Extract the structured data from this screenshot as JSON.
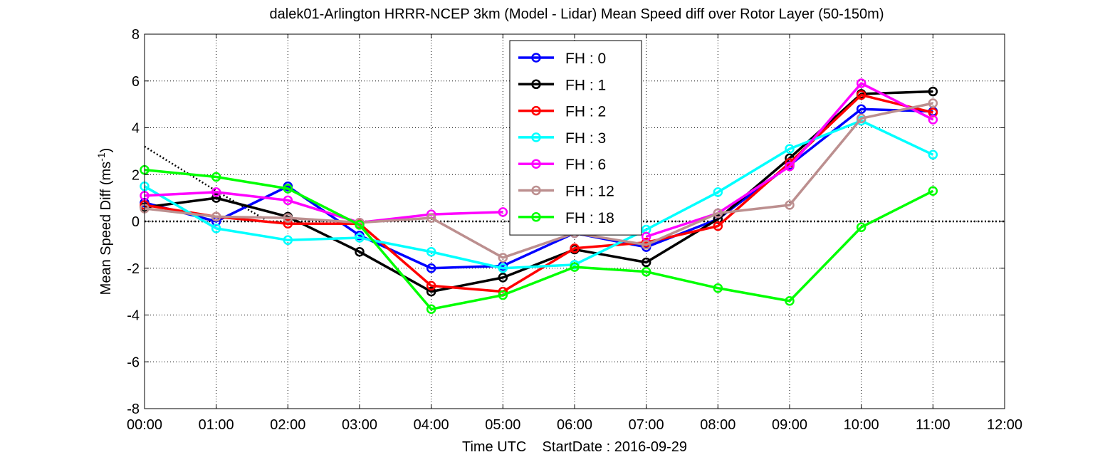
{
  "chart_data": {
    "type": "line",
    "title": "dalek01-Arlington HRRR-NCEP 3km (Model - Lidar) Mean Speed diff over Rotor Layer (50-150m)",
    "xlabel": "Time UTC    StartDate : 2016-09-29",
    "ylabel": "Mean Speed Diff (ms",
    "ylabel_sup": "-1",
    "ylabel_close": ")",
    "x_tick_labels": [
      "00:00",
      "01:00",
      "02:00",
      "03:00",
      "04:00",
      "05:00",
      "06:00",
      "07:00",
      "08:00",
      "09:00",
      "10:00",
      "11:00",
      "12:00"
    ],
    "xlim": [
      0,
      12
    ],
    "ylim": [
      -8,
      8
    ],
    "y_ticks": [
      -8,
      -6,
      -4,
      -2,
      0,
      2,
      4,
      6,
      8
    ],
    "grid": true,
    "legend_position": "top-center",
    "zero_line": {
      "y": 0,
      "style": "dotted",
      "color": "#000000"
    },
    "trend_line": {
      "x": [
        0,
        1,
        1.7
      ],
      "y": [
        3.2,
        1.3,
        0.05
      ],
      "style": "dotted",
      "color": "#000000"
    },
    "series": [
      {
        "name": "FH : 0",
        "color": "#0000ff",
        "x": [
          0,
          1,
          2,
          3,
          4,
          5,
          6,
          7,
          8,
          9,
          10,
          11
        ],
        "y": [
          0.8,
          0.0,
          1.5,
          -0.6,
          -2.0,
          -1.9,
          -0.5,
          -1.1,
          0.1,
          2.4,
          4.8,
          4.7
        ]
      },
      {
        "name": "FH : 1",
        "color": "#000000",
        "x": [
          0,
          1,
          2,
          3,
          4,
          5,
          6,
          7,
          8,
          9,
          10,
          11
        ],
        "y": [
          0.6,
          1.0,
          0.2,
          -1.3,
          -3.0,
          -2.4,
          -1.2,
          -1.75,
          0.1,
          2.7,
          5.45,
          5.55
        ]
      },
      {
        "name": "FH : 2",
        "color": "#ff0000",
        "x": [
          0,
          1,
          2,
          3,
          4,
          5,
          6,
          7,
          8,
          9,
          10,
          11
        ],
        "y": [
          0.7,
          0.2,
          -0.1,
          -0.1,
          -2.75,
          -3.0,
          -1.15,
          -0.9,
          -0.2,
          2.5,
          5.4,
          4.65
        ]
      },
      {
        "name": "FH : 3",
        "color": "#00ffff",
        "x": [
          0,
          1,
          2,
          3,
          4,
          5,
          6,
          7,
          8,
          9,
          10,
          11
        ],
        "y": [
          1.5,
          -0.3,
          -0.8,
          -0.7,
          -1.3,
          -2.0,
          -1.85,
          -0.35,
          1.25,
          3.1,
          4.3,
          2.85
        ]
      },
      {
        "name": "FH : 6",
        "color": "#ff00ff",
        "x": [
          0,
          1,
          2,
          3,
          4,
          5,
          6,
          7,
          8,
          9,
          10,
          11
        ],
        "y": [
          1.1,
          1.25,
          0.9,
          -0.05,
          0.3,
          0.4,
          null,
          -0.65,
          0.35,
          2.35,
          5.9,
          4.35
        ]
      },
      {
        "name": "FH : 12",
        "color": "#bc8f8f",
        "x": [
          0,
          1,
          2,
          3,
          4,
          5,
          6,
          7,
          8,
          9,
          10,
          11
        ],
        "y": [
          0.55,
          0.2,
          0.15,
          -0.05,
          0.15,
          -1.55,
          -0.5,
          -1.0,
          0.35,
          0.7,
          4.4,
          5.05
        ]
      },
      {
        "name": "FH : 18",
        "color": "#00ff00",
        "x": [
          0,
          1,
          2,
          3,
          4,
          5,
          6,
          7,
          8,
          9,
          10,
          11
        ],
        "y": [
          2.2,
          1.9,
          1.4,
          -0.15,
          -3.75,
          -3.15,
          -1.95,
          -2.15,
          -2.85,
          -3.4,
          -0.25,
          1.3
        ]
      }
    ]
  }
}
